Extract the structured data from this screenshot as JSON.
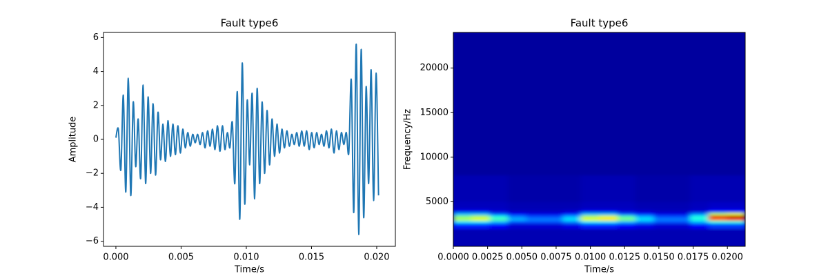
{
  "chart_data": [
    {
      "type": "line",
      "title": "Fault type6",
      "xlabel": "Time/s",
      "ylabel": "Amplitude",
      "xlim": [
        -0.00095,
        0.02143
      ],
      "ylim": [
        -6.3,
        6.3
      ],
      "xticks": [
        {
          "value": 0,
          "label": "0.000"
        },
        0.005,
        {
          "value": 0.01,
          "label": "0.010"
        },
        0.015,
        {
          "value": 0.02,
          "label": "0.020"
        }
      ],
      "yticks": [
        {
          "value": -6,
          "label": "−6"
        },
        {
          "value": -4,
          "label": "−4"
        },
        {
          "value": -2,
          "label": "−2"
        },
        0,
        2,
        4,
        6
      ],
      "grid": false,
      "series": [
        {
          "color": "#1f77b4",
          "x": [
            0,
            0.00019,
            0.00038,
            0.00057,
            0.00076,
            0.00095,
            0.00114,
            0.00133,
            0.00152,
            0.00171,
            0.0019,
            0.00209,
            0.00228,
            0.00247,
            0.00266,
            0.00285,
            0.00304,
            0.00323,
            0.00342,
            0.00361,
            0.0038,
            0.00399,
            0.00418,
            0.00437,
            0.00456,
            0.00475,
            0.00494,
            0.00513,
            0.00532,
            0.00551,
            0.0057,
            0.00589,
            0.00608,
            0.00627,
            0.00646,
            0.00665,
            0.00684,
            0.00703,
            0.00722,
            0.00741,
            0.0076,
            0.00779,
            0.00798,
            0.00817,
            0.00836,
            0.00855,
            0.00874,
            0.00893,
            0.00912,
            0.00931,
            0.0095,
            0.00969,
            0.00988,
            0.01007,
            0.01026,
            0.01045,
            0.01064,
            0.01083,
            0.01102,
            0.01121,
            0.0114,
            0.01159,
            0.01178,
            0.01197,
            0.01216,
            0.01235,
            0.01254,
            0.01273,
            0.01292,
            0.01311,
            0.0133,
            0.01349,
            0.01368,
            0.01387,
            0.01406,
            0.01425,
            0.01444,
            0.01463,
            0.01482,
            0.01501,
            0.0152,
            0.01539,
            0.01558,
            0.01577,
            0.01596,
            0.01615,
            0.01634,
            0.01653,
            0.01672,
            0.01691,
            0.0171,
            0.01729,
            0.01748,
            0.01767,
            0.01786,
            0.01805,
            0.01824,
            0.01843,
            0.01862,
            0.01881,
            0.019,
            0.01919,
            0.01938,
            0.01957,
            0.01976,
            0.01995,
            0.02014
          ],
          "values": [
            0.1,
            0.6,
            -1.8,
            2.6,
            -3.1,
            3.6,
            -3.3,
            2.2,
            -1.6,
            1.2,
            -2.3,
            3.2,
            -2.6,
            2.5,
            -2.0,
            2.1,
            -2.1,
            1.6,
            -1.2,
            0.9,
            -1.3,
            1.1,
            -1.0,
            0.9,
            -0.9,
            0.8,
            -0.8,
            0.6,
            -0.5,
            0.4,
            -0.4,
            0.3,
            -0.2,
            0.3,
            -0.3,
            0.4,
            -0.5,
            0.5,
            -0.4,
            0.6,
            -0.6,
            0.8,
            -0.7,
            0.8,
            -0.6,
            0.4,
            -0.5,
            1.0,
            -2.6,
            2.8,
            -4.7,
            4.5,
            -3.8,
            2.3,
            -1.5,
            2.7,
            -3.5,
            3.0,
            -2.6,
            2.2,
            -2.0,
            1.7,
            -1.5,
            1.2,
            -1.0,
            0.9,
            -0.8,
            0.6,
            -0.5,
            0.5,
            -0.4,
            0.3,
            -0.3,
            0.4,
            -0.4,
            0.5,
            -0.4,
            0.5,
            -0.6,
            0.4,
            -0.5,
            0.4,
            -0.3,
            0.3,
            -0.4,
            0.5,
            -0.5,
            0.6,
            -0.8,
            0.5,
            -0.6,
            0.4,
            -0.3,
            0.4,
            -0.8,
            3.5,
            -4.3,
            5.6,
            -5.6,
            5.3,
            -4.6,
            3.1,
            -2.6,
            4.1,
            -3.6,
            3.9,
            -3.3
          ]
        }
      ]
    },
    {
      "type": "heatmap",
      "title": "Fault type6",
      "xlabel": "Time/s",
      "ylabel": "Frequency/Hz",
      "xlim": [
        0,
        0.0213
      ],
      "ylim": [
        0,
        24000
      ],
      "xticks": [
        {
          "value": 0,
          "label": "0.0000"
        },
        0.0025,
        {
          "value": 0.005,
          "label": "0.0050"
        },
        0.0075,
        {
          "value": 0.01,
          "label": "0.0100"
        },
        0.0125,
        {
          "value": 0.015,
          "label": "0.0150"
        },
        0.0175,
        {
          "value": 0.02,
          "label": "0.0200"
        }
      ],
      "yticks": [
        5000,
        10000,
        15000,
        20000
      ],
      "colormap": "jet",
      "zlim": [
        0,
        1
      ],
      "x_bins": [
        0,
        0.00133,
        0.00266,
        0.004,
        0.00533,
        0.00666,
        0.008,
        0.00932,
        0.01065,
        0.012,
        0.0133,
        0.01465,
        0.016,
        0.0173,
        0.01864,
        0.02,
        0.0213
      ],
      "y_bins": [
        0,
        2000,
        2600,
        2900,
        3200,
        3500,
        3800,
        4200,
        5000,
        8000,
        24000
      ],
      "z": [
        [
          0.05,
          0.05,
          0.05,
          0.05,
          0.05,
          0.05,
          0.05,
          0.05,
          0.05,
          0.05,
          0.05,
          0.05,
          0.05,
          0.05,
          0.05,
          0.05
        ],
        [
          0.15,
          0.15,
          0.12,
          0.08,
          0.08,
          0.08,
          0.1,
          0.15,
          0.15,
          0.12,
          0.1,
          0.08,
          0.08,
          0.12,
          0.18,
          0.18
        ],
        [
          0.35,
          0.35,
          0.3,
          0.2,
          0.2,
          0.2,
          0.25,
          0.35,
          0.35,
          0.3,
          0.25,
          0.2,
          0.2,
          0.3,
          0.4,
          0.4
        ],
        [
          0.55,
          0.6,
          0.45,
          0.3,
          0.25,
          0.25,
          0.35,
          0.6,
          0.65,
          0.5,
          0.35,
          0.25,
          0.25,
          0.4,
          0.75,
          0.8
        ],
        [
          0.5,
          0.55,
          0.4,
          0.25,
          0.2,
          0.2,
          0.3,
          0.55,
          0.6,
          0.45,
          0.3,
          0.2,
          0.2,
          0.4,
          0.9,
          0.95
        ],
        [
          0.3,
          0.3,
          0.2,
          0.12,
          0.1,
          0.1,
          0.15,
          0.3,
          0.3,
          0.2,
          0.15,
          0.1,
          0.1,
          0.25,
          0.55,
          0.6
        ],
        [
          0.1,
          0.1,
          0.08,
          0.06,
          0.06,
          0.06,
          0.07,
          0.1,
          0.1,
          0.08,
          0.07,
          0.06,
          0.06,
          0.08,
          0.14,
          0.14
        ],
        [
          0.06,
          0.06,
          0.06,
          0.05,
          0.05,
          0.05,
          0.05,
          0.06,
          0.06,
          0.06,
          0.05,
          0.05,
          0.05,
          0.06,
          0.07,
          0.07
        ],
        [
          0.05,
          0.05,
          0.05,
          0.04,
          0.04,
          0.04,
          0.04,
          0.05,
          0.05,
          0.05,
          0.04,
          0.04,
          0.04,
          0.05,
          0.05,
          0.05
        ],
        [
          0.03,
          0.03,
          0.03,
          0.03,
          0.03,
          0.03,
          0.03,
          0.03,
          0.03,
          0.03,
          0.03,
          0.03,
          0.03,
          0.03,
          0.03,
          0.03
        ]
      ]
    }
  ]
}
